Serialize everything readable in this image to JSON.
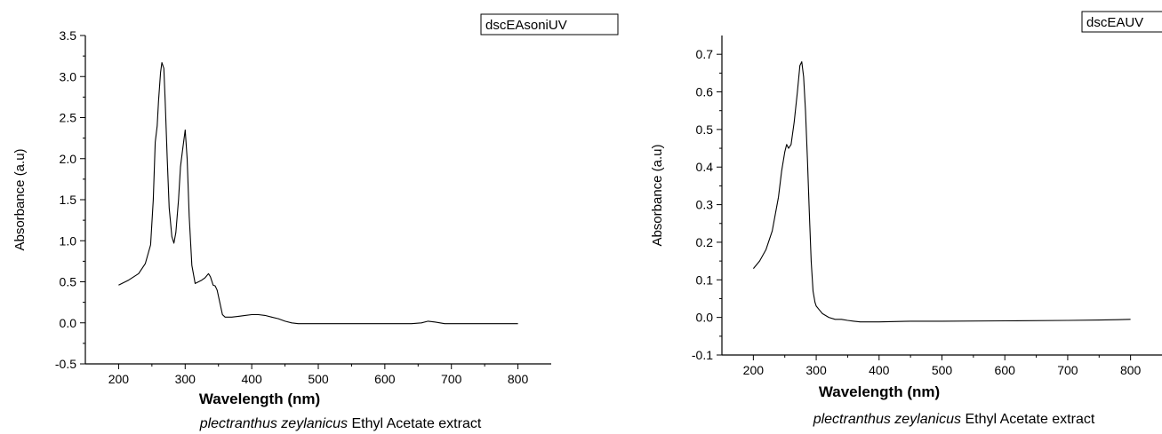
{
  "chart_data": [
    {
      "type": "line",
      "legend": "dscEAsoniUV",
      "xlabel": "Wavelength (nm)",
      "ylabel": "Absorbance (a.u)",
      "caption_italic": "plectranthus  zeylanicus",
      "caption_rest": " Ethyl Acetate extract",
      "xlim": [
        150,
        850
      ],
      "ylim": [
        -0.5,
        3.5
      ],
      "xticks": [
        "200",
        "300",
        "400",
        "500",
        "600",
        "700",
        "800"
      ],
      "yticks": [
        "-0.5",
        "0.0",
        "0.5",
        "1.0",
        "1.5",
        "2.0",
        "2.5",
        "3.0",
        "3.5"
      ],
      "series": [
        {
          "x": [
            200,
            215,
            230,
            240,
            248,
            252,
            255,
            258,
            260,
            263,
            265,
            268,
            270,
            273,
            276,
            280,
            283,
            286,
            290,
            293,
            296,
            300,
            303,
            306,
            310,
            315,
            320,
            325,
            330,
            335,
            338,
            342,
            345,
            348,
            352,
            356,
            360,
            365,
            370,
            380,
            390,
            400,
            410,
            420,
            430,
            440,
            450,
            460,
            470,
            500,
            550,
            600,
            640,
            655,
            665,
            675,
            690,
            700,
            750,
            800
          ],
          "y": [
            0.46,
            0.52,
            0.6,
            0.72,
            0.95,
            1.5,
            2.2,
            2.4,
            2.7,
            3.05,
            3.17,
            3.1,
            2.7,
            2.0,
            1.4,
            1.05,
            0.97,
            1.1,
            1.5,
            1.9,
            2.1,
            2.35,
            2.0,
            1.3,
            0.7,
            0.48,
            0.5,
            0.52,
            0.55,
            0.6,
            0.56,
            0.46,
            0.45,
            0.4,
            0.25,
            0.1,
            0.07,
            0.07,
            0.07,
            0.08,
            0.09,
            0.1,
            0.1,
            0.09,
            0.07,
            0.05,
            0.02,
            0.0,
            -0.01,
            -0.01,
            -0.01,
            -0.01,
            -0.01,
            0.0,
            0.02,
            0.01,
            -0.01,
            -0.01,
            -0.01,
            -0.01
          ]
        }
      ]
    },
    {
      "type": "line",
      "legend": "dscEAUV",
      "xlabel": "Wavelength (nm)",
      "ylabel": "Absorbance (a.u)",
      "caption_italic": "plectranthus  zeylanicus",
      "caption_rest": " Ethyl Acetate extract",
      "xlim": [
        150,
        850
      ],
      "ylim": [
        -0.1,
        0.75
      ],
      "xticks": [
        "200",
        "300",
        "400",
        "500",
        "600",
        "700",
        "800"
      ],
      "yticks": [
        "-0.1",
        "0.0",
        "0.1",
        "0.2",
        "0.3",
        "0.4",
        "0.5",
        "0.6",
        "0.7"
      ],
      "series": [
        {
          "x": [
            200,
            210,
            220,
            230,
            240,
            245,
            250,
            253,
            256,
            260,
            265,
            270,
            274,
            277,
            280,
            283,
            286,
            289,
            292,
            295,
            298,
            300,
            305,
            310,
            320,
            330,
            340,
            350,
            360,
            370,
            380,
            400,
            450,
            500,
            600,
            700,
            750,
            780,
            800
          ],
          "y": [
            0.13,
            0.15,
            0.18,
            0.23,
            0.32,
            0.39,
            0.44,
            0.46,
            0.45,
            0.46,
            0.52,
            0.6,
            0.67,
            0.68,
            0.64,
            0.55,
            0.42,
            0.28,
            0.15,
            0.07,
            0.04,
            0.03,
            0.02,
            0.01,
            0.0,
            -0.005,
            -0.005,
            -0.008,
            -0.01,
            -0.012,
            -0.012,
            -0.012,
            -0.01,
            -0.01,
            -0.009,
            -0.008,
            -0.007,
            -0.006,
            -0.005
          ]
        }
      ]
    }
  ]
}
